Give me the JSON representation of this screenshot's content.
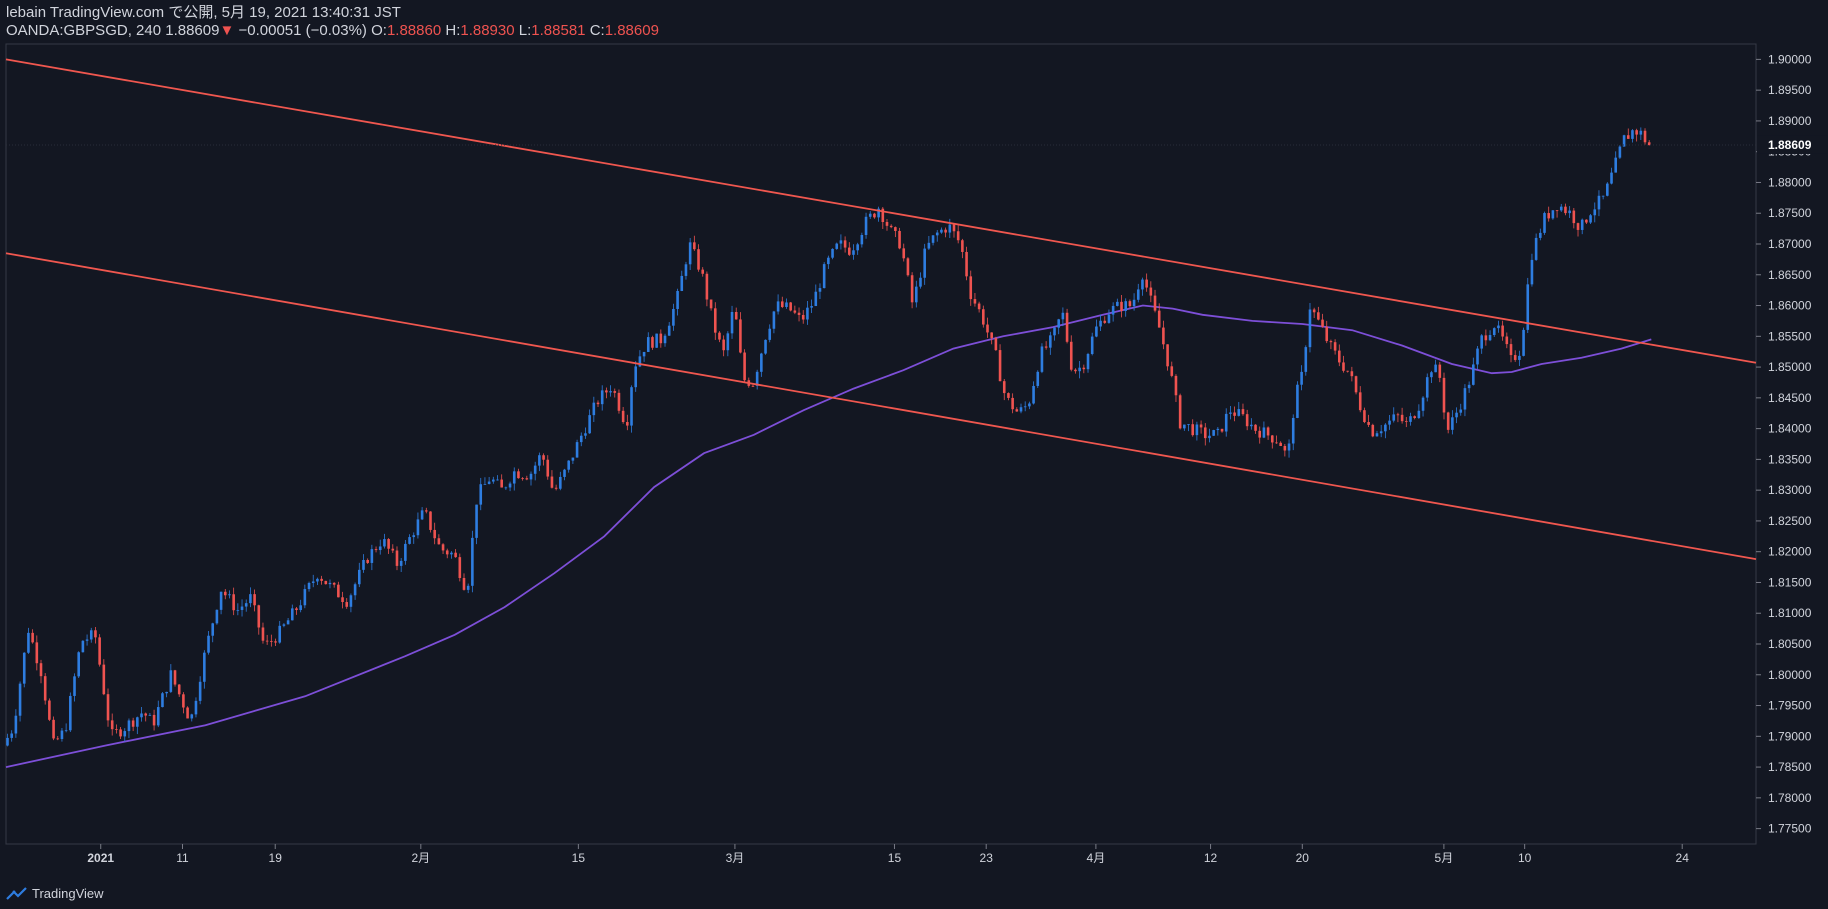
{
  "header": {
    "publish_line": "lebain TradingView.com で公開, 5月 19, 2021 13:40:31 JST",
    "symbol": "OANDA:GBPSGD, 240",
    "last": "1.88609",
    "change_arrow": "▼",
    "change": "−0.00051 (−0.03%)",
    "o_label": "O:",
    "o_value": "1.88860",
    "h_label": "H:",
    "h_value": "1.88930",
    "l_label": "L:",
    "l_value": "1.88581",
    "c_label": "C:",
    "c_value": "1.88609"
  },
  "footer": {
    "brand": "TradingView"
  },
  "colors": {
    "background": "#131722",
    "up": "#2e7de0",
    "down": "#ef5350",
    "trendline": "#f0574f",
    "ma": "#7d4fd8",
    "grid_text": "#d1d4dc"
  },
  "chart_data": {
    "type": "candlestick",
    "symbol": "OANDA:GBPSGD",
    "timeframe": "240",
    "ylim": [
      1.7725,
      1.9025
    ],
    "y_ticks": [
      "1.90000",
      "1.89500",
      "1.89000",
      "1.88500",
      "1.88000",
      "1.87500",
      "1.87000",
      "1.86500",
      "1.86000",
      "1.85500",
      "1.85000",
      "1.84500",
      "1.84000",
      "1.83500",
      "1.83000",
      "1.82500",
      "1.82000",
      "1.81500",
      "1.81000",
      "1.80500",
      "1.80000",
      "1.79500",
      "1.79000",
      "1.78500",
      "1.78000",
      "1.77500"
    ],
    "last_price_label": "1.88609",
    "x_range": [
      0,
      1755
    ],
    "x_ticks": [
      {
        "t": 95,
        "label": "2021"
      },
      {
        "t": 177,
        "label": "11"
      },
      {
        "t": 270,
        "label": "19"
      },
      {
        "t": 416,
        "label": "2月"
      },
      {
        "t": 574,
        "label": "15"
      },
      {
        "t": 731,
        "label": "3月"
      },
      {
        "t": 891,
        "label": "15"
      },
      {
        "t": 983,
        "label": "23"
      },
      {
        "t": 1093,
        "label": "4月"
      },
      {
        "t": 1208,
        "label": "12"
      },
      {
        "t": 1300,
        "label": "20"
      },
      {
        "t": 1442,
        "label": "5月"
      },
      {
        "t": 1523,
        "label": "10"
      },
      {
        "t": 1681,
        "label": "24"
      }
    ],
    "price_anchors": [
      [
        0,
        1.7885
      ],
      [
        10,
        1.7915
      ],
      [
        25,
        1.8075
      ],
      [
        38,
        1.8005
      ],
      [
        50,
        1.7885
      ],
      [
        62,
        1.791
      ],
      [
        78,
        1.8055
      ],
      [
        92,
        1.8065
      ],
      [
        108,
        1.79
      ],
      [
        122,
        1.7915
      ],
      [
        140,
        1.794
      ],
      [
        150,
        1.792
      ],
      [
        168,
        1.8
      ],
      [
        188,
        1.7925
      ],
      [
        200,
        1.802
      ],
      [
        218,
        1.814
      ],
      [
        235,
        1.8105
      ],
      [
        248,
        1.8125
      ],
      [
        262,
        1.8045
      ],
      [
        278,
        1.807
      ],
      [
        295,
        1.811
      ],
      [
        315,
        1.8165
      ],
      [
        330,
        1.814
      ],
      [
        345,
        1.812
      ],
      [
        365,
        1.819
      ],
      [
        380,
        1.822
      ],
      [
        395,
        1.818
      ],
      [
        410,
        1.823
      ],
      [
        422,
        1.8265
      ],
      [
        438,
        1.8205
      ],
      [
        452,
        1.8195
      ],
      [
        465,
        1.8135
      ],
      [
        475,
        1.829
      ],
      [
        488,
        1.832
      ],
      [
        500,
        1.83
      ],
      [
        512,
        1.833
      ],
      [
        528,
        1.8325
      ],
      [
        540,
        1.836
      ],
      [
        552,
        1.8295
      ],
      [
        565,
        1.8335
      ],
      [
        580,
        1.839
      ],
      [
        596,
        1.8445
      ],
      [
        610,
        1.847
      ],
      [
        625,
        1.8405
      ],
      [
        632,
        1.85
      ],
      [
        645,
        1.854
      ],
      [
        660,
        1.8545
      ],
      [
        675,
        1.8605
      ],
      [
        688,
        1.87
      ],
      [
        700,
        1.8655
      ],
      [
        712,
        1.857
      ],
      [
        722,
        1.852
      ],
      [
        733,
        1.86
      ],
      [
        742,
        1.848
      ],
      [
        752,
        1.8475
      ],
      [
        765,
        1.8555
      ],
      [
        775,
        1.86
      ],
      [
        788,
        1.8595
      ],
      [
        800,
        1.8575
      ],
      [
        812,
        1.8605
      ],
      [
        825,
        1.8665
      ],
      [
        838,
        1.87
      ],
      [
        850,
        1.869
      ],
      [
        865,
        1.8735
      ],
      [
        878,
        1.876
      ],
      [
        890,
        1.872
      ],
      [
        900,
        1.87
      ],
      [
        912,
        1.86
      ],
      [
        925,
        1.869
      ],
      [
        935,
        1.8715
      ],
      [
        948,
        1.873
      ],
      [
        960,
        1.87
      ],
      [
        970,
        1.862
      ],
      [
        982,
        1.858
      ],
      [
        995,
        1.852
      ],
      [
        1005,
        1.845
      ],
      [
        1018,
        1.8425
      ],
      [
        1028,
        1.844
      ],
      [
        1040,
        1.852
      ],
      [
        1052,
        1.8545
      ],
      [
        1062,
        1.859
      ],
      [
        1072,
        1.8495
      ],
      [
        1082,
        1.85
      ],
      [
        1095,
        1.856
      ],
      [
        1108,
        1.859
      ],
      [
        1120,
        1.86
      ],
      [
        1132,
        1.86
      ],
      [
        1142,
        1.8655
      ],
      [
        1152,
        1.86
      ],
      [
        1160,
        1.856
      ],
      [
        1170,
        1.8495
      ],
      [
        1180,
        1.841
      ],
      [
        1192,
        1.84
      ],
      [
        1205,
        1.839
      ],
      [
        1218,
        1.839
      ],
      [
        1230,
        1.843
      ],
      [
        1242,
        1.842
      ],
      [
        1255,
        1.84
      ],
      [
        1268,
        1.839
      ],
      [
        1280,
        1.838
      ],
      [
        1288,
        1.835
      ],
      [
        1295,
        1.8445
      ],
      [
        1303,
        1.849
      ],
      [
        1310,
        1.86
      ],
      [
        1320,
        1.857
      ],
      [
        1330,
        1.8535
      ],
      [
        1340,
        1.851
      ],
      [
        1350,
        1.849
      ],
      [
        1360,
        1.844
      ],
      [
        1372,
        1.8395
      ],
      [
        1385,
        1.8405
      ],
      [
        1398,
        1.842
      ],
      [
        1408,
        1.8405
      ],
      [
        1420,
        1.844
      ],
      [
        1432,
        1.85
      ],
      [
        1440,
        1.849
      ],
      [
        1448,
        1.8395
      ],
      [
        1460,
        1.8435
      ],
      [
        1472,
        1.8485
      ],
      [
        1482,
        1.8545
      ],
      [
        1495,
        1.857
      ],
      [
        1505,
        1.854
      ],
      [
        1512,
        1.851
      ],
      [
        1522,
        1.853
      ],
      [
        1532,
        1.868
      ],
      [
        1545,
        1.874
      ],
      [
        1558,
        1.8765
      ],
      [
        1572,
        1.875
      ],
      [
        1582,
        1.8725
      ],
      [
        1592,
        1.8755
      ],
      [
        1605,
        1.8775
      ],
      [
        1615,
        1.882
      ],
      [
        1625,
        1.887
      ],
      [
        1635,
        1.8885
      ],
      [
        1642,
        1.888
      ],
      [
        1650,
        1.8861
      ]
    ],
    "ma_anchors": [
      [
        0,
        1.785
      ],
      [
        100,
        1.7885
      ],
      [
        200,
        1.7918
      ],
      [
        300,
        1.7965
      ],
      [
        400,
        1.803
      ],
      [
        450,
        1.8065
      ],
      [
        500,
        1.811
      ],
      [
        550,
        1.8165
      ],
      [
        600,
        1.8225
      ],
      [
        650,
        1.8305
      ],
      [
        700,
        1.836
      ],
      [
        750,
        1.839
      ],
      [
        800,
        1.843
      ],
      [
        850,
        1.8465
      ],
      [
        900,
        1.8495
      ],
      [
        950,
        1.853
      ],
      [
        1000,
        1.855
      ],
      [
        1050,
        1.8565
      ],
      [
        1100,
        1.8585
      ],
      [
        1140,
        1.86
      ],
      [
        1170,
        1.8595
      ],
      [
        1200,
        1.8585
      ],
      [
        1250,
        1.8575
      ],
      [
        1300,
        1.857
      ],
      [
        1350,
        1.856
      ],
      [
        1400,
        1.8535
      ],
      [
        1450,
        1.8505
      ],
      [
        1490,
        1.849
      ],
      [
        1510,
        1.8492
      ],
      [
        1540,
        1.8505
      ],
      [
        1580,
        1.8515
      ],
      [
        1620,
        1.853
      ],
      [
        1650,
        1.8545
      ]
    ],
    "trendlines": [
      {
        "name": "upper-channel",
        "points": [
          [
            0,
            1.9
          ],
          [
            1755,
            1.8507
          ]
        ]
      },
      {
        "name": "lower-channel",
        "points": [
          [
            0,
            1.8685
          ],
          [
            1755,
            1.8188
          ]
        ]
      }
    ]
  }
}
